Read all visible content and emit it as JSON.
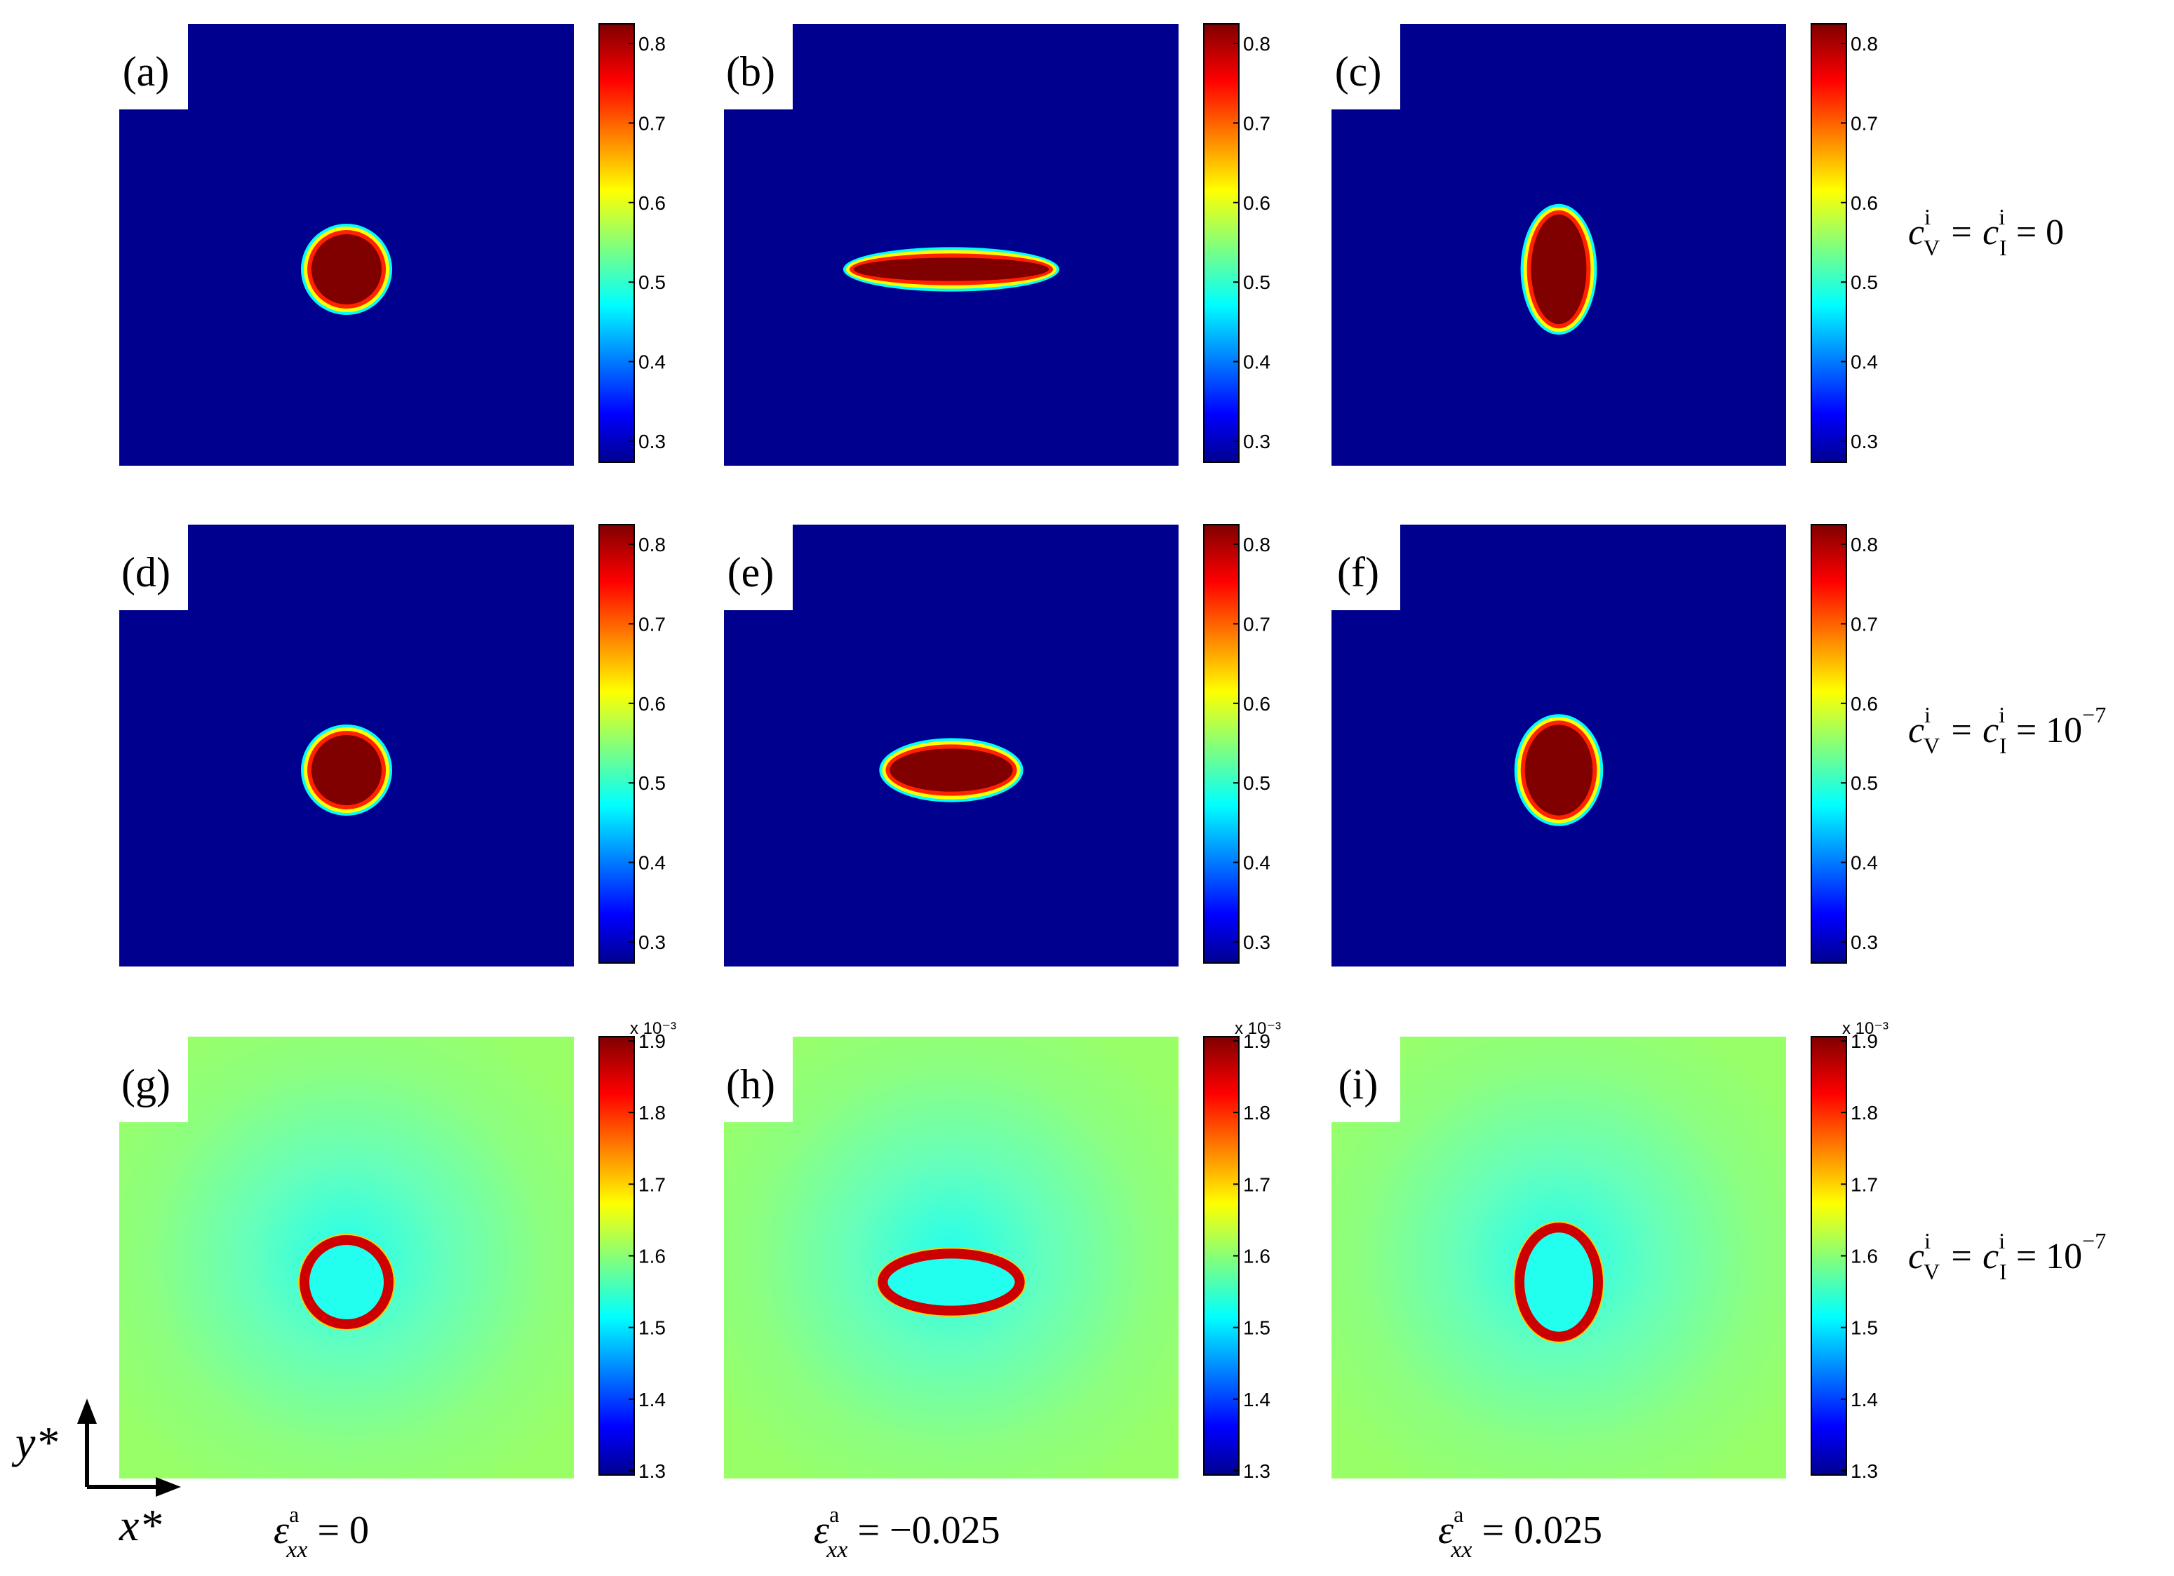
{
  "figure": {
    "colors": {
      "jet": [
        "#00008f",
        "#0000ff",
        "#00ffff",
        "#ffff00",
        "#ff0000",
        "#800000"
      ],
      "background_conc": "#00008f",
      "background_sink": "#99ff66",
      "sink_inner": "#22ffee",
      "sink_mid": "#66ffbb",
      "ring": "#cc0000"
    },
    "colorbars": {
      "conc": {
        "ticks": [
          "0.8",
          "0.7",
          "0.6",
          "0.5",
          "0.4",
          "0.3"
        ]
      },
      "sink": {
        "ticks": [
          "1.9",
          "1.8",
          "1.7",
          "1.6",
          "1.5",
          "1.4",
          "1.3"
        ],
        "exponent": "x 10⁻³"
      }
    },
    "panels": [
      {
        "label": "(a)",
        "field": "concentration",
        "shape": "circle",
        "aspect": 1.0
      },
      {
        "label": "(b)",
        "field": "concentration",
        "shape": "horizontal-ellipse",
        "aspect": 5.6
      },
      {
        "label": "(c)",
        "field": "concentration",
        "shape": "vertical-ellipse",
        "aspect": 0.56
      },
      {
        "label": "(d)",
        "field": "concentration",
        "shape": "circle",
        "aspect": 1.0
      },
      {
        "label": "(e)",
        "field": "concentration",
        "shape": "horizontal-ellipse",
        "aspect": 2.4
      },
      {
        "label": "(f)",
        "field": "concentration",
        "shape": "vertical-ellipse",
        "aspect": 0.78
      },
      {
        "label": "(g)",
        "field": "sink-strength",
        "shape": "circle",
        "aspect": 1.0
      },
      {
        "label": "(h)",
        "field": "sink-strength",
        "shape": "horizontal-ellipse",
        "aspect": 2.4
      },
      {
        "label": "(i)",
        "field": "sink-strength",
        "shape": "vertical-ellipse",
        "aspect": 0.72
      }
    ],
    "row_labels": [
      {
        "lhs": "c",
        "sup1": "i",
        "sub1": "V",
        "mid": " = c",
        "sup2": "i",
        "sub2": "I",
        "rhs": " = 0"
      },
      {
        "lhs": "c",
        "sup1": "i",
        "sub1": "V",
        "mid": " = c",
        "sup2": "i",
        "sub2": "I",
        "rhs": " = 10",
        "rhs_sup": "−7"
      },
      {
        "lhs": "c",
        "sup1": "i",
        "sub1": "V",
        "mid": " = c",
        "sup2": "i",
        "sub2": "I",
        "rhs": " = 10",
        "rhs_sup": "−7"
      }
    ],
    "column_labels": [
      {
        "sym": "ε",
        "sup": "a",
        "sub": "xx",
        "rhs": " = 0"
      },
      {
        "sym": "ε",
        "sup": "a",
        "sub": "xx",
        "rhs": " = −0.025"
      },
      {
        "sym": "ε",
        "sup": "a",
        "sub": "xx",
        "rhs": " = 0.025"
      }
    ],
    "axes": {
      "y_label": "y*",
      "x_label": "x*"
    }
  }
}
